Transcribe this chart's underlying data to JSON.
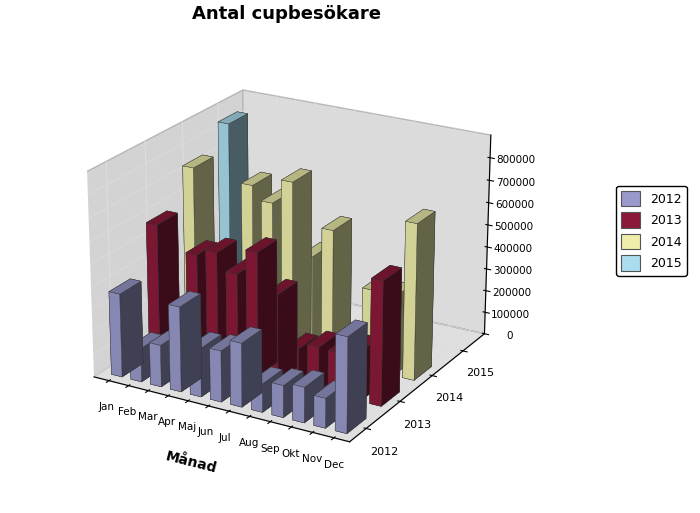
{
  "title": "Antal cupbesökare",
  "xlabel": "Månad",
  "months": [
    "Jan",
    "Feb",
    "Mar",
    "Apr",
    "Maj",
    "Jun",
    "Jul",
    "Aug",
    "Sep",
    "Okt",
    "Nov",
    "Dec"
  ],
  "years": [
    "2012",
    "2013",
    "2014",
    "2015"
  ],
  "colors": {
    "2012": "#9999CC",
    "2013": "#8B1A3A",
    "2014": "#EEEEAA",
    "2015": "#AADDEE"
  },
  "data": {
    "2012": [
      370000,
      150000,
      185000,
      375000,
      215000,
      225000,
      280000,
      125000,
      140000,
      155000,
      130000,
      415000
    ],
    "2013": [
      575000,
      60000,
      480000,
      510000,
      435000,
      550000,
      385000,
      165000,
      195000,
      190000,
      220000,
      545000
    ],
    "2014": [
      735000,
      350000,
      0,
      710000,
      650000,
      760000,
      450000,
      585000,
      0,
      360000,
      350000,
      690000
    ],
    "2015": [
      845000,
      0,
      0,
      0,
      0,
      0,
      0,
      0,
      0,
      0,
      0,
      0
    ]
  },
  "zlim": [
    0,
    900000
  ],
  "zticks": [
    0,
    100000,
    200000,
    300000,
    400000,
    500000,
    600000,
    700000,
    800000
  ],
  "pane_color_x": "#A8A8A8",
  "pane_color_y": "#B8B8B8",
  "pane_color_z": "#C0C0C0",
  "figsize": [
    7.0,
    5.13
  ],
  "dpi": 100,
  "elev": 22,
  "azim": -60,
  "bar_width": 0.55,
  "bar_depth": 0.55
}
